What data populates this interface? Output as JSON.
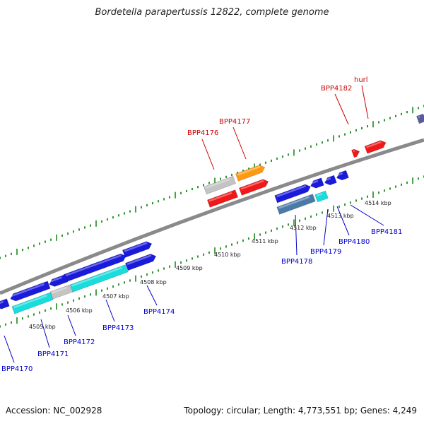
{
  "title": "Bordetella parapertussis 12822, complete genome",
  "footer": {
    "accession": "Accession: NC_002928",
    "summary": "Topology: circular; Length: 4,773,551 bp; Genes: 4,249"
  },
  "colors": {
    "backbone": "#8a8a8a",
    "tick": "#1a8a1a",
    "label_top": "#cc0000",
    "label_bottom": "#0000cc",
    "blue": "#1a1adc",
    "cyan": "#19dcdc",
    "steel": "#4a7aaa",
    "gray": "#c4c4c4",
    "orange": "#ff9a10",
    "red": "#f01818",
    "purple": "#5a5aa0"
  },
  "scale_labels": [
    "4505 kbp",
    "4506 kbp",
    "4507 kbp",
    "4508 kbp",
    "4509 kbp",
    "4510 kbp",
    "4511 kbp",
    "4512 kbp",
    "4513 kbp",
    "4514 kbp"
  ],
  "top_labels": [
    "BPP4176",
    "BPP4177",
    "BPP4182",
    "hurl"
  ],
  "bottom_labels": [
    "BPP4170",
    "BPP4171",
    "BPP4172",
    "BPP4173",
    "BPP4174",
    "BPP4178",
    "BPP4179",
    "BPP4180",
    "BPP4181"
  ]
}
